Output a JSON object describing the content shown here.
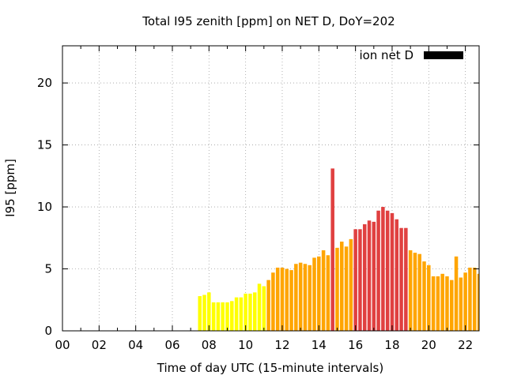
{
  "chart_data": {
    "type": "bar",
    "title": "Total I95 zenith [ppm] on NET D, DoY=202",
    "xlabel": "Time of day UTC (15-minute intervals)",
    "ylabel": "I95 [ppm]",
    "xlim": [
      0,
      22.75
    ],
    "ylim": [
      0,
      23
    ],
    "grid": true,
    "legend_position": "top-right",
    "x_ticks": [
      {
        "v": 0,
        "label": "00"
      },
      {
        "v": 2,
        "label": "02"
      },
      {
        "v": 4,
        "label": "04"
      },
      {
        "v": 6,
        "label": "06"
      },
      {
        "v": 8,
        "label": "08"
      },
      {
        "v": 10,
        "label": "10"
      },
      {
        "v": 12,
        "label": "12"
      },
      {
        "v": 14,
        "label": "14"
      },
      {
        "v": 16,
        "label": "16"
      },
      {
        "v": 18,
        "label": "18"
      },
      {
        "v": 20,
        "label": "20"
      },
      {
        "v": 22,
        "label": "22"
      }
    ],
    "y_ticks": [
      {
        "v": 0,
        "label": "0"
      },
      {
        "v": 5,
        "label": "5"
      },
      {
        "v": 10,
        "label": "10"
      },
      {
        "v": 15,
        "label": "15"
      },
      {
        "v": 20,
        "label": "20"
      }
    ],
    "series": [
      {
        "name": "ion net D",
        "color": "#000000",
        "x": [
          7.5,
          7.75,
          8.0,
          8.25,
          8.5,
          8.75,
          9.0,
          9.25,
          9.5,
          9.75,
          10.0,
          10.25,
          10.5,
          10.75,
          11.0,
          11.25,
          11.5,
          11.75,
          12.0,
          12.25,
          12.5,
          12.75,
          13.0,
          13.25,
          13.5,
          13.75,
          14.0,
          14.25,
          14.5,
          14.75,
          15.0,
          15.25,
          15.5,
          15.75,
          16.0,
          16.25,
          16.5,
          16.75,
          17.0,
          17.25,
          17.5,
          17.75,
          18.0,
          18.25,
          18.5,
          18.75,
          19.0,
          19.25,
          19.5,
          19.75,
          20.0,
          20.25,
          20.5,
          20.75,
          21.0,
          21.25,
          21.5,
          21.75,
          22.0,
          22.25,
          22.5,
          22.75
        ],
        "values": [
          2.8,
          2.9,
          3.1,
          2.3,
          2.3,
          2.3,
          2.3,
          2.4,
          2.7,
          2.7,
          3.0,
          3.0,
          3.1,
          3.8,
          3.6,
          4.1,
          4.7,
          5.1,
          5.1,
          5.0,
          4.9,
          5.4,
          5.5,
          5.4,
          5.3,
          5.9,
          6.0,
          6.5,
          6.1,
          13.1,
          6.7,
          7.2,
          6.8,
          7.4,
          8.2,
          8.2,
          8.6,
          8.9,
          8.8,
          9.7,
          10.0,
          9.7,
          9.5,
          9.0,
          8.3,
          8.3,
          6.5,
          6.3,
          6.2,
          5.6,
          5.3,
          4.4,
          4.4,
          4.6,
          4.4,
          4.1,
          6.0,
          4.3,
          4.7,
          5.1,
          5.1,
          4.6
        ],
        "colors": [
          "#ffff00",
          "#ffff00",
          "#ffff00",
          "#ffff00",
          "#ffff00",
          "#ffff00",
          "#ffff00",
          "#ffff00",
          "#ffff00",
          "#ffff00",
          "#ffff00",
          "#ffff00",
          "#ffff00",
          "#ffff00",
          "#ffff00",
          "#ffa500",
          "#ffa500",
          "#ffa500",
          "#ffa500",
          "#ffa500",
          "#ffa500",
          "#ffa500",
          "#ffa500",
          "#ffa500",
          "#ffa500",
          "#ffa500",
          "#ffa500",
          "#ffa500",
          "#ffa500",
          "#e04040",
          "#ffa500",
          "#ffa500",
          "#ffa500",
          "#ffa500",
          "#e04040",
          "#e04040",
          "#e04040",
          "#e04040",
          "#e04040",
          "#e04040",
          "#e04040",
          "#e04040",
          "#e04040",
          "#e04040",
          "#e04040",
          "#e04040",
          "#ffa500",
          "#ffa500",
          "#ffa500",
          "#ffa500",
          "#ffa500",
          "#ffa500",
          "#ffa500",
          "#ffa500",
          "#ffa500",
          "#ffa500",
          "#ffa500",
          "#ffa500",
          "#ffa500",
          "#ffa500",
          "#ffa500",
          "#ffa500"
        ]
      }
    ]
  }
}
